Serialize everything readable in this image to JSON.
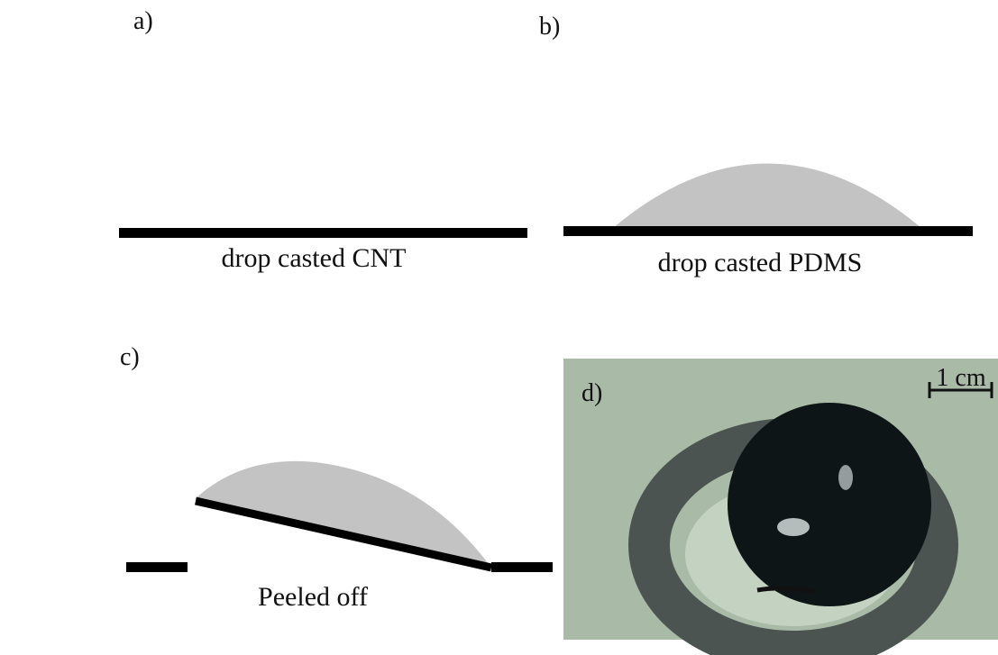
{
  "panels": [
    {
      "label": "a)",
      "caption": "drop casted CNT"
    },
    {
      "label": "b)",
      "caption": "drop casted PDMS"
    },
    {
      "label": "c)",
      "caption": "Peeled off"
    },
    {
      "label": "d)"
    }
  ],
  "scale_bar": "1 cm"
}
